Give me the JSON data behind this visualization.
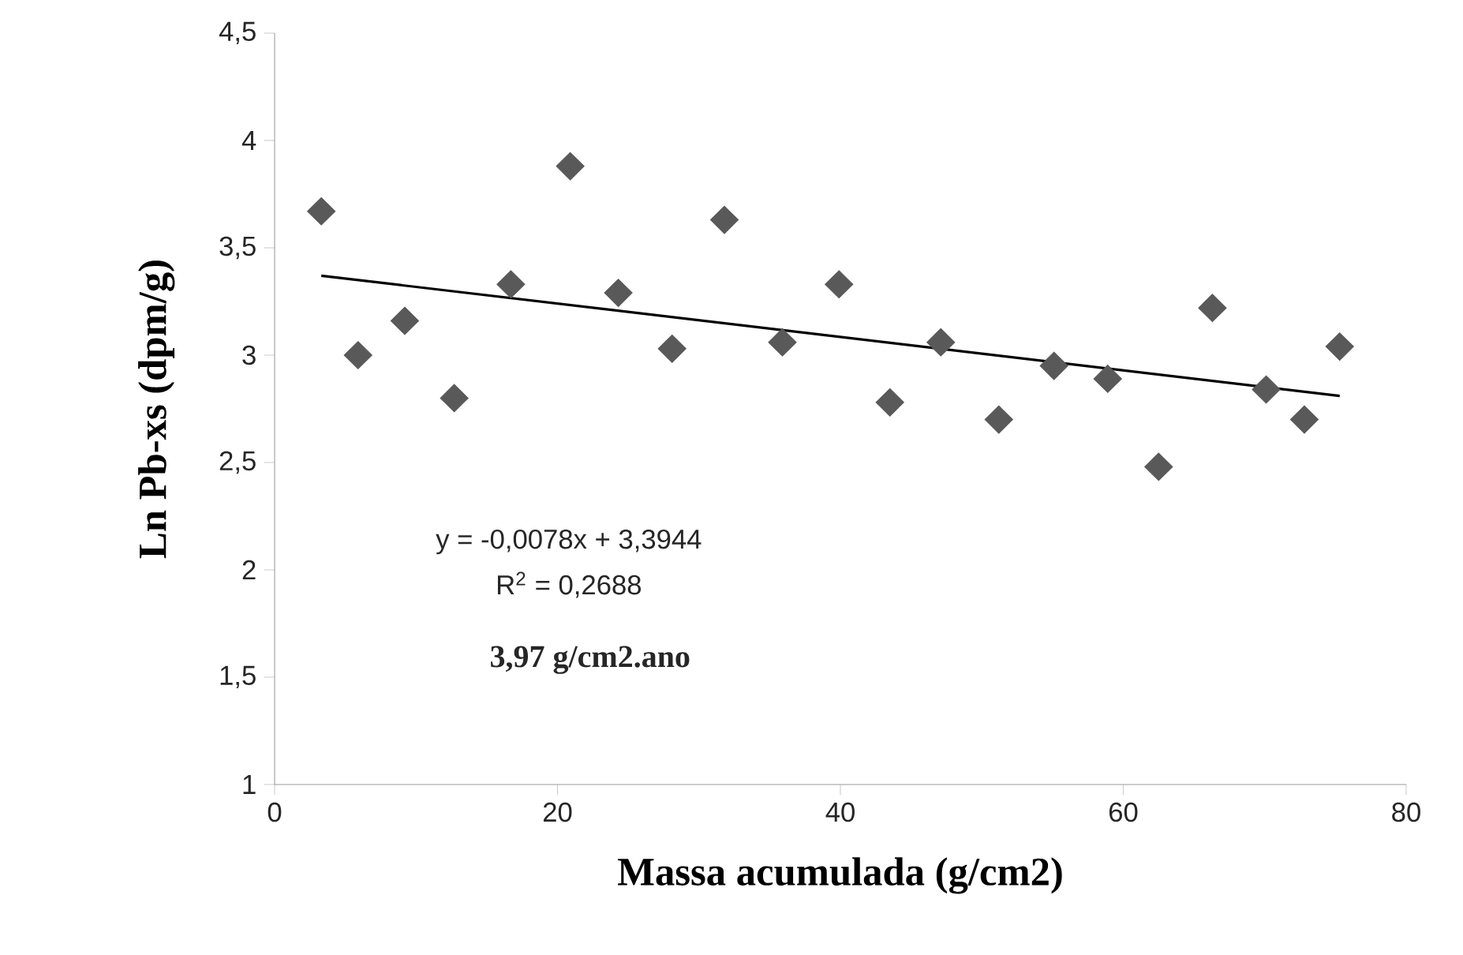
{
  "chart_data": {
    "type": "scatter",
    "xlabel": "Massa acumulada (g/cm2)",
    "ylabel": "Ln Pb-xs (dpm/g)",
    "xlim": [
      0,
      80
    ],
    "ylim": [
      1,
      4.5
    ],
    "xticks": [
      0,
      20,
      40,
      60,
      80
    ],
    "yticks": [
      1,
      {
        "value": 1.5,
        "label": "1,5"
      },
      2,
      {
        "value": 2.5,
        "label": "2,5"
      },
      3,
      {
        "value": 3.5,
        "label": "3,5"
      },
      4,
      {
        "value": 4.5,
        "label": "4,5"
      }
    ],
    "marker": "diamond",
    "series": [
      {
        "color": "#595959",
        "x": [
          3.3,
          5.9,
          9.2,
          12.7,
          16.7,
          20.9,
          24.3,
          28.1,
          31.8,
          35.9,
          39.9,
          43.5,
          47.1,
          51.2,
          55.1,
          58.9,
          62.5,
          66.3,
          70.1,
          72.8,
          75.3
        ],
        "values": [
          3.67,
          3.0,
          3.16,
          2.8,
          3.33,
          3.88,
          3.29,
          3.03,
          3.63,
          3.06,
          3.33,
          2.78,
          3.06,
          2.7,
          2.95,
          2.89,
          2.48,
          3.22,
          2.84,
          2.7,
          3.04
        ]
      },
      {
        "type": "line",
        "color": "#000000",
        "marker": "none",
        "x": [
          3.3,
          75.3
        ],
        "values": [
          3.37,
          2.81
        ]
      }
    ],
    "annotations": [
      "y = -0,0078x + 3,3944",
      "R$^{2}$ = 0,2688",
      "3,97 g/cm2.ano"
    ]
  }
}
